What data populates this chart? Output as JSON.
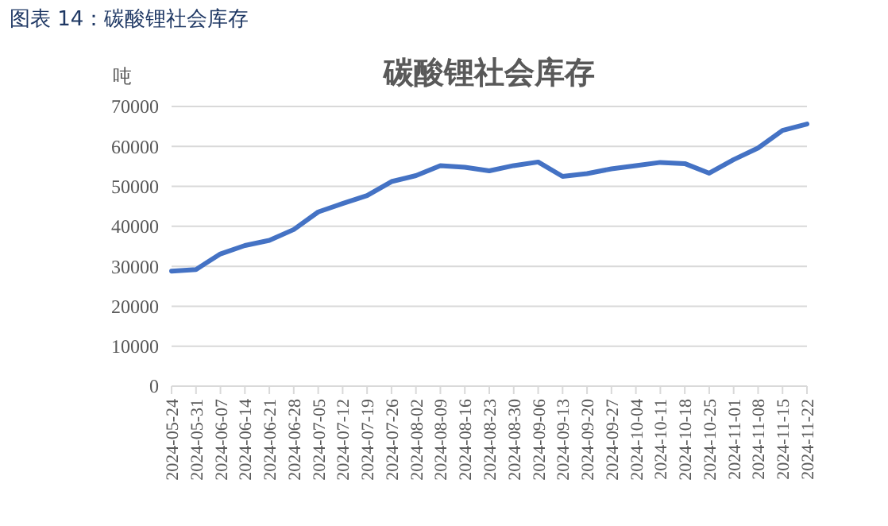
{
  "chart_data": {
    "type": "line",
    "title": "碳酸锂社会库存",
    "ylabel": "吨",
    "annotations": [
      "图表 14：碳酸锂社会库存"
    ],
    "categories": [
      "2024-05-24",
      "2024-05-31",
      "2024-06-07",
      "2024-06-14",
      "2024-06-21",
      "2024-06-28",
      "2024-07-05",
      "2024-07-12",
      "2024-07-19",
      "2024-07-26",
      "2024-08-02",
      "2024-08-09",
      "2024-08-16",
      "2024-08-23",
      "2024-08-30",
      "2024-09-06",
      "2024-09-13",
      "2024-09-20",
      "2024-09-27",
      "2024-10-04",
      "2024-10-11",
      "2024-10-18",
      "2024-10-25",
      "2024-11-01",
      "2024-11-08",
      "2024-11-15",
      "2024-11-22"
    ],
    "series": [
      {
        "color": "#4472c4",
        "values": [
          28800,
          29200,
          33100,
          35200,
          36500,
          39200,
          43600,
          45700,
          47700,
          51200,
          52700,
          55200,
          54800,
          53900,
          55200,
          56100,
          52500,
          53200,
          54400,
          55200,
          56000,
          55700,
          53300,
          56700,
          59600,
          64000,
          65600
        ]
      }
    ],
    "ylim": [
      0,
      70000
    ],
    "yticks": [
      0,
      10000,
      20000,
      30000,
      40000,
      50000,
      60000,
      70000
    ],
    "grid": "y"
  }
}
